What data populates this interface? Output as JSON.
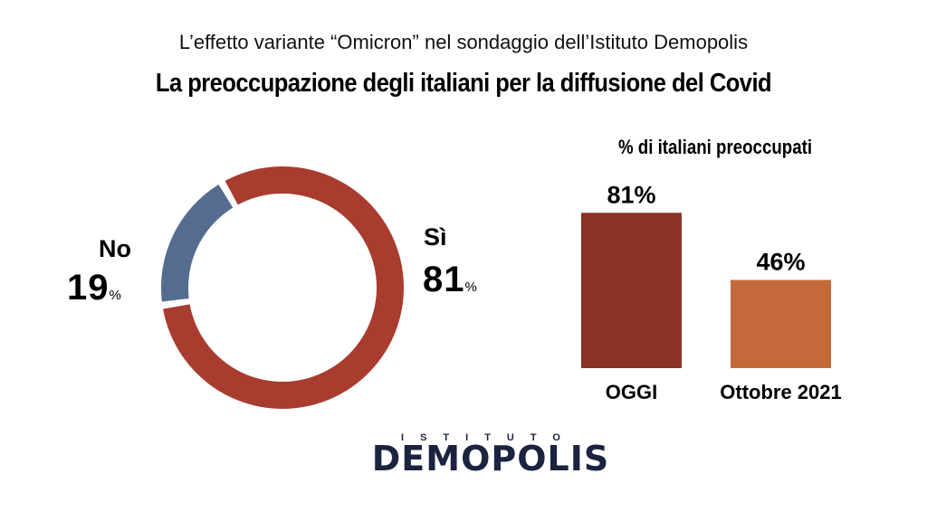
{
  "header": {
    "subtitle": "L’effetto variante “Omicron” nel sondaggio dell’Istituto Demopolis",
    "title": "La preoccupazione degli italiani per la diffusione del Covid"
  },
  "colors": {
    "si": "#a83c2f",
    "no": "#546c90",
    "bar_oggi": "#8b3324",
    "bar_ottobre": "#c46a3a",
    "logo": "#1c2340",
    "logo_accent": "#e0a63a"
  },
  "chart_data": [
    {
      "type": "pie",
      "title": "",
      "slices": [
        {
          "label": "Sì",
          "value": 81,
          "display": "81",
          "unit": "%"
        },
        {
          "label": "No",
          "value": 19,
          "display": "19",
          "unit": "%"
        }
      ]
    },
    {
      "type": "bar",
      "title": "% di italiani preoccupati",
      "categories": [
        "OGGI",
        "Ottobre 2021"
      ],
      "values": [
        81,
        46
      ],
      "data_labels": [
        "81%",
        "46%"
      ],
      "ylim": [
        0,
        100
      ],
      "grid": false
    }
  ],
  "logo": {
    "top": "ISTITUTO",
    "name": "DEMOPOLIS"
  }
}
